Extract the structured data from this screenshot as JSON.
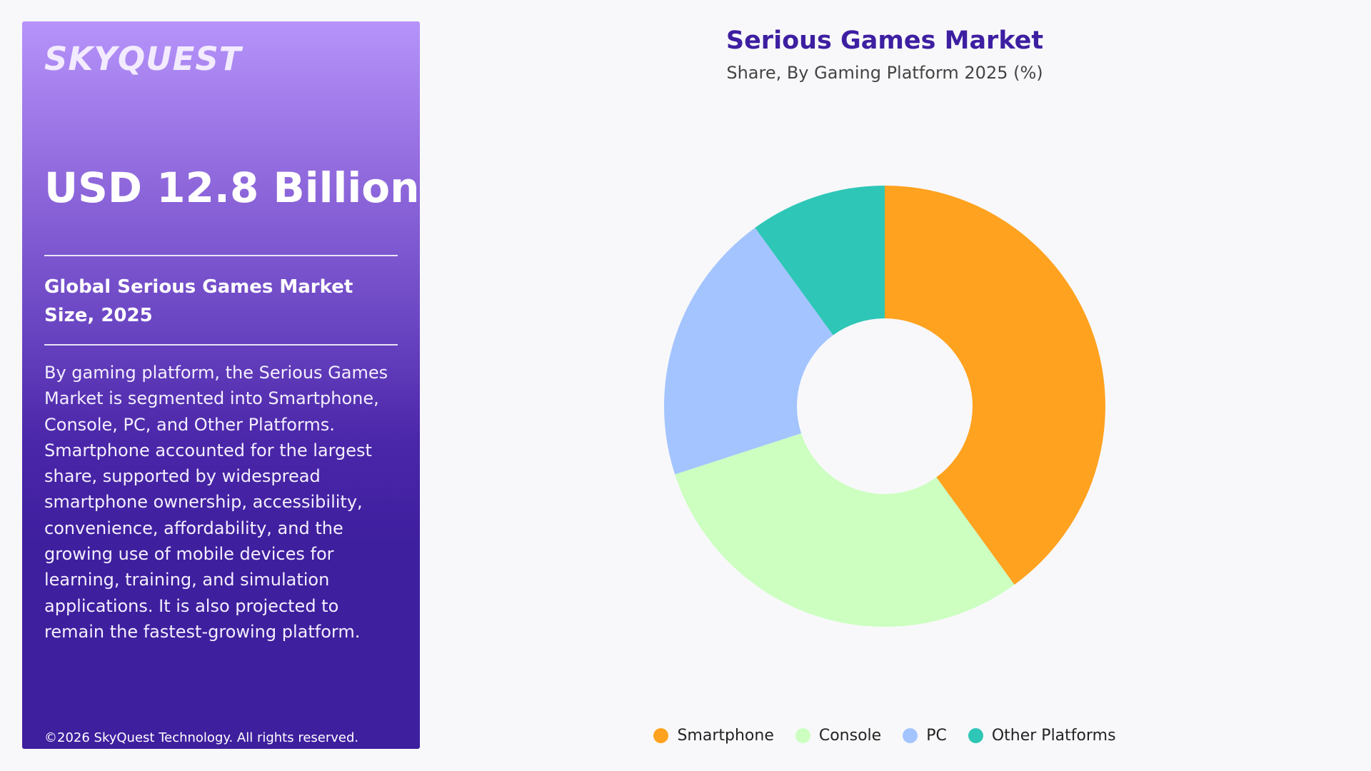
{
  "panel": {
    "logo_text": "SKYQUEST",
    "market_size": "USD 12.8 Billion",
    "market_size_label": "Global Serious Games Market Size, 2025",
    "description": "By gaming platform, the Serious Games Market is segmented into Smartphone, Console, PC, and Other Platforms. Smartphone accounted for the largest share, supported by widespread smartphone ownership, accessibility, convenience, affordability, and the growing use of mobile devices for learning, training, and simulation applications. It is also projected to remain the fastest-growing platform.",
    "copyright": "©2026 SkyQuest Technology. All rights reserved."
  },
  "chart_data": {
    "type": "pie",
    "title": "Serious Games Market",
    "subtitle": "Share, By Gaming Platform 2025 (%)",
    "categories": [
      "Smartphone",
      "Console",
      "PC",
      "Other Platforms"
    ],
    "values": [
      40,
      30,
      20,
      10
    ],
    "colors": [
      "#ffa21f",
      "#ccffc0",
      "#a3c4ff",
      "#2ec6b6"
    ],
    "legend_position": "bottom",
    "donut": true
  }
}
